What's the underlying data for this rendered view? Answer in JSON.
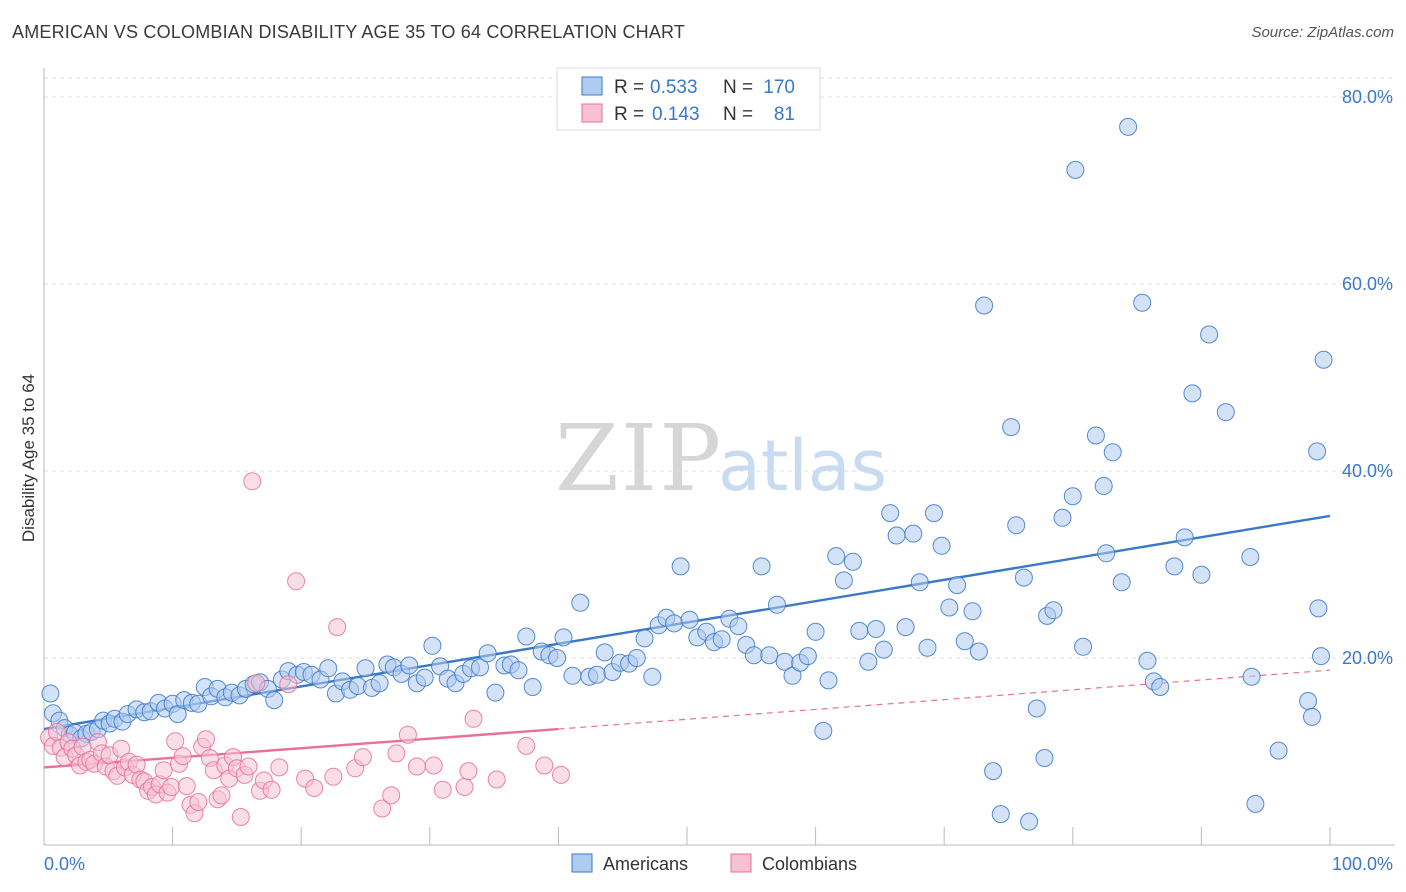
{
  "title": "AMERICAN VS COLOMBIAN DISABILITY AGE 35 TO 64 CORRELATION CHART",
  "source": "Source: ZipAtlas.com",
  "watermark": {
    "zip": "ZIP",
    "atlas": "atlas"
  },
  "colors": {
    "americans": "#3a78c9",
    "americans_fill": "#aecbf0",
    "colombians": "#e8709a",
    "colombians_fill": "#f6c2d3",
    "grid": "#dcdcdc",
    "tick_text": "#3a78c9"
  },
  "legend": {
    "r_label": "R =",
    "n_label": "N =",
    "rows": [
      {
        "series": "Americans",
        "r": "0.533",
        "n": "170"
      },
      {
        "series": "Colombians",
        "r": "0.143",
        "n": "81"
      }
    ]
  },
  "chart_data": {
    "type": "scatter",
    "title": "AMERICAN VS COLOMBIAN DISABILITY AGE 35 TO 64 CORRELATION CHART",
    "xlabel": "",
    "ylabel": "Disability Age 35 to 64",
    "xlim": [
      0,
      100
    ],
    "ylim": [
      0,
      84
    ],
    "x_tick_labels": [
      "0.0%",
      "100.0%"
    ],
    "y_ticks": [
      20,
      40,
      60,
      80
    ],
    "y_tick_labels": [
      "20.0%",
      "40.0%",
      "60.0%",
      "80.0%"
    ],
    "grid": true,
    "legend_position": "top-center",
    "series": [
      {
        "name": "Americans",
        "trend": {
          "x": [
            0,
            100
          ],
          "y": [
            12.4,
            35.2
          ],
          "style": "solid"
        },
        "points": [
          [
            0.5,
            16.2
          ],
          [
            0.7,
            14.1
          ],
          [
            1.2,
            13.3
          ],
          [
            1.6,
            12.5
          ],
          [
            2.0,
            11.8
          ],
          [
            2.4,
            12.0
          ],
          [
            2.9,
            11.4
          ],
          [
            3.3,
            11.9
          ],
          [
            3.7,
            12.1
          ],
          [
            4.2,
            12.4
          ],
          [
            4.6,
            13.3
          ],
          [
            5.1,
            13.0
          ],
          [
            5.5,
            13.5
          ],
          [
            6.1,
            13.2
          ],
          [
            6.5,
            14.0
          ],
          [
            7.2,
            14.5
          ],
          [
            7.8,
            14.2
          ],
          [
            8.3,
            14.3
          ],
          [
            8.9,
            15.2
          ],
          [
            9.4,
            14.6
          ],
          [
            10.0,
            15.1
          ],
          [
            10.4,
            14.0
          ],
          [
            10.9,
            15.5
          ],
          [
            11.5,
            15.2
          ],
          [
            12.0,
            15.1
          ],
          [
            12.5,
            16.9
          ],
          [
            13.0,
            15.9
          ],
          [
            13.5,
            16.7
          ],
          [
            14.1,
            15.8
          ],
          [
            14.6,
            16.3
          ],
          [
            15.2,
            16.0
          ],
          [
            15.7,
            16.7
          ],
          [
            16.3,
            17.2
          ],
          [
            16.8,
            17.4
          ],
          [
            17.4,
            16.7
          ],
          [
            17.9,
            15.5
          ],
          [
            18.5,
            17.7
          ],
          [
            19.0,
            18.6
          ],
          [
            19.7,
            18.2
          ],
          [
            20.2,
            18.5
          ],
          [
            20.8,
            18.2
          ],
          [
            21.5,
            17.7
          ],
          [
            22.1,
            18.9
          ],
          [
            22.7,
            16.2
          ],
          [
            23.2,
            17.5
          ],
          [
            23.8,
            16.6
          ],
          [
            24.4,
            17.0
          ],
          [
            25.0,
            18.9
          ],
          [
            25.5,
            16.8
          ],
          [
            26.1,
            17.3
          ],
          [
            26.7,
            19.3
          ],
          [
            27.2,
            19.0
          ],
          [
            27.8,
            18.3
          ],
          [
            28.4,
            19.2
          ],
          [
            29.0,
            17.3
          ],
          [
            29.6,
            17.9
          ],
          [
            30.2,
            21.3
          ],
          [
            30.8,
            19.1
          ],
          [
            31.4,
            17.8
          ],
          [
            32.0,
            17.3
          ],
          [
            32.6,
            18.3
          ],
          [
            33.2,
            18.9
          ],
          [
            33.9,
            19.0
          ],
          [
            34.5,
            20.5
          ],
          [
            35.1,
            16.3
          ],
          [
            35.8,
            19.2
          ],
          [
            36.3,
            19.3
          ],
          [
            36.9,
            18.7
          ],
          [
            37.5,
            22.3
          ],
          [
            38.0,
            16.9
          ],
          [
            38.7,
            20.7
          ],
          [
            39.3,
            20.3
          ],
          [
            39.9,
            20.0
          ],
          [
            40.4,
            22.2
          ],
          [
            41.1,
            18.1
          ],
          [
            41.7,
            25.9
          ],
          [
            42.4,
            18.0
          ],
          [
            43.0,
            18.2
          ],
          [
            43.6,
            20.6
          ],
          [
            44.2,
            18.5
          ],
          [
            44.8,
            19.5
          ],
          [
            45.5,
            19.4
          ],
          [
            46.1,
            20.0
          ],
          [
            46.7,
            22.1
          ],
          [
            47.3,
            18.0
          ],
          [
            47.8,
            23.5
          ],
          [
            48.4,
            24.3
          ],
          [
            49.0,
            23.7
          ],
          [
            49.5,
            29.8
          ],
          [
            50.2,
            24.1
          ],
          [
            50.8,
            22.2
          ],
          [
            51.5,
            22.8
          ],
          [
            52.1,
            21.7
          ],
          [
            52.7,
            22.0
          ],
          [
            53.3,
            24.2
          ],
          [
            54.0,
            23.4
          ],
          [
            54.6,
            21.4
          ],
          [
            55.2,
            20.3
          ],
          [
            55.8,
            29.8
          ],
          [
            56.4,
            20.3
          ],
          [
            57.0,
            25.7
          ],
          [
            57.6,
            19.6
          ],
          [
            58.2,
            18.1
          ],
          [
            58.8,
            19.5
          ],
          [
            59.4,
            20.2
          ],
          [
            60.0,
            22.8
          ],
          [
            60.6,
            12.2
          ],
          [
            61.0,
            17.6
          ],
          [
            61.6,
            30.9
          ],
          [
            62.2,
            28.3
          ],
          [
            62.9,
            30.3
          ],
          [
            63.4,
            22.9
          ],
          [
            64.1,
            19.6
          ],
          [
            64.7,
            23.1
          ],
          [
            65.3,
            20.9
          ],
          [
            65.8,
            35.5
          ],
          [
            66.3,
            33.1
          ],
          [
            67.0,
            23.3
          ],
          [
            67.6,
            33.3
          ],
          [
            68.1,
            28.1
          ],
          [
            68.7,
            21.1
          ],
          [
            69.2,
            35.5
          ],
          [
            69.8,
            32.0
          ],
          [
            70.4,
            25.4
          ],
          [
            71.0,
            27.8
          ],
          [
            71.6,
            21.8
          ],
          [
            72.2,
            25.0
          ],
          [
            72.7,
            20.7
          ],
          [
            73.1,
            57.7
          ],
          [
            73.8,
            7.9
          ],
          [
            74.4,
            3.3
          ],
          [
            75.2,
            44.7
          ],
          [
            75.6,
            34.2
          ],
          [
            76.2,
            28.6
          ],
          [
            76.6,
            2.5
          ],
          [
            77.2,
            14.6
          ],
          [
            77.8,
            9.3
          ],
          [
            78.0,
            24.5
          ],
          [
            78.5,
            25.1
          ],
          [
            79.2,
            35.0
          ],
          [
            80.0,
            37.3
          ],
          [
            80.2,
            72.2
          ],
          [
            80.8,
            21.2
          ],
          [
            81.8,
            43.8
          ],
          [
            82.4,
            38.4
          ],
          [
            82.6,
            31.2
          ],
          [
            83.1,
            42.0
          ],
          [
            83.8,
            28.1
          ],
          [
            84.3,
            76.8
          ],
          [
            85.4,
            58.0
          ],
          [
            85.8,
            19.7
          ],
          [
            86.3,
            17.5
          ],
          [
            86.8,
            16.9
          ],
          [
            87.9,
            29.8
          ],
          [
            88.7,
            32.9
          ],
          [
            89.3,
            48.3
          ],
          [
            90.0,
            28.9
          ],
          [
            90.6,
            54.6
          ],
          [
            91.9,
            46.3
          ],
          [
            93.8,
            30.8
          ],
          [
            93.9,
            18.0
          ],
          [
            94.2,
            4.4
          ],
          [
            96.0,
            10.1
          ],
          [
            98.3,
            15.4
          ],
          [
            98.6,
            13.7
          ],
          [
            99.0,
            42.1
          ],
          [
            99.1,
            25.3
          ],
          [
            99.3,
            20.2
          ],
          [
            99.5,
            51.9
          ]
        ]
      },
      {
        "name": "Colombians",
        "trend": {
          "x": [
            0,
            40
          ],
          "y": [
            8.3,
            12.4
          ],
          "style": "solid",
          "dashed_extension": {
            "x": [
              40,
              100
            ],
            "y": [
              12.4,
              18.7
            ]
          }
        },
        "points": [
          [
            0.4,
            11.5
          ],
          [
            0.7,
            10.6
          ],
          [
            1.0,
            12.1
          ],
          [
            1.3,
            10.4
          ],
          [
            1.6,
            9.4
          ],
          [
            1.9,
            11.0
          ],
          [
            2.2,
            10.3
          ],
          [
            2.5,
            9.6
          ],
          [
            2.8,
            8.5
          ],
          [
            3.0,
            10.5
          ],
          [
            3.3,
            8.9
          ],
          [
            3.6,
            9.1
          ],
          [
            3.9,
            8.7
          ],
          [
            4.2,
            11.0
          ],
          [
            4.5,
            9.8
          ],
          [
            4.8,
            8.4
          ],
          [
            5.1,
            9.6
          ],
          [
            5.4,
            7.9
          ],
          [
            5.7,
            7.4
          ],
          [
            6.0,
            10.3
          ],
          [
            6.3,
            8.3
          ],
          [
            6.6,
            8.9
          ],
          [
            6.9,
            7.5
          ],
          [
            7.2,
            8.6
          ],
          [
            7.5,
            7.0
          ],
          [
            7.8,
            6.8
          ],
          [
            8.1,
            5.8
          ],
          [
            8.4,
            6.2
          ],
          [
            8.7,
            5.4
          ],
          [
            9.0,
            6.5
          ],
          [
            9.3,
            8.0
          ],
          [
            9.6,
            5.6
          ],
          [
            9.9,
            6.2
          ],
          [
            10.2,
            11.1
          ],
          [
            10.5,
            8.7
          ],
          [
            10.8,
            9.5
          ],
          [
            11.1,
            6.3
          ],
          [
            11.4,
            4.3
          ],
          [
            11.7,
            3.4
          ],
          [
            12.0,
            4.6
          ],
          [
            12.3,
            10.5
          ],
          [
            12.6,
            11.3
          ],
          [
            12.9,
            9.3
          ],
          [
            13.2,
            8.0
          ],
          [
            13.5,
            4.9
          ],
          [
            13.8,
            5.3
          ],
          [
            14.1,
            8.5
          ],
          [
            14.4,
            7.1
          ],
          [
            14.7,
            9.4
          ],
          [
            15.0,
            8.2
          ],
          [
            15.3,
            3.0
          ],
          [
            15.6,
            7.5
          ],
          [
            15.9,
            8.4
          ],
          [
            16.2,
            38.9
          ],
          [
            16.5,
            17.3
          ],
          [
            16.8,
            5.8
          ],
          [
            17.1,
            6.9
          ],
          [
            17.7,
            5.9
          ],
          [
            18.3,
            8.3
          ],
          [
            19.0,
            17.2
          ],
          [
            19.6,
            28.2
          ],
          [
            20.3,
            7.1
          ],
          [
            21.0,
            6.1
          ],
          [
            22.5,
            7.3
          ],
          [
            22.8,
            23.3
          ],
          [
            24.2,
            8.2
          ],
          [
            24.8,
            9.4
          ],
          [
            26.3,
            3.9
          ],
          [
            27.0,
            5.3
          ],
          [
            27.4,
            9.8
          ],
          [
            28.3,
            11.8
          ],
          [
            29.0,
            8.4
          ],
          [
            30.3,
            8.5
          ],
          [
            31.0,
            5.9
          ],
          [
            32.7,
            6.2
          ],
          [
            33.0,
            7.9
          ],
          [
            33.4,
            13.5
          ],
          [
            35.2,
            7.0
          ],
          [
            37.5,
            10.6
          ],
          [
            38.9,
            8.5
          ],
          [
            40.2,
            7.5
          ]
        ]
      }
    ]
  }
}
